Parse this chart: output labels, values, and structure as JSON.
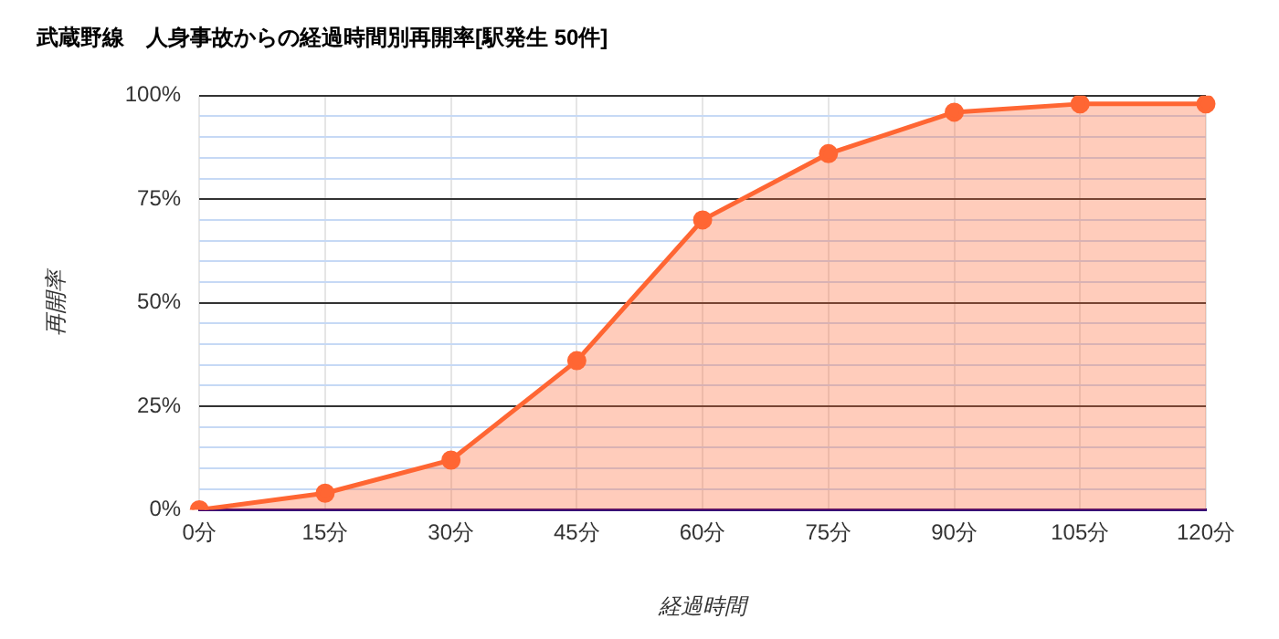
{
  "chart_data": {
    "type": "area",
    "title": "武蔵野線　人身事故からの経過時間別再開率[駅発生 50件]",
    "xlabel": "経過時間",
    "ylabel": "再開率",
    "categories": [
      "0分",
      "15分",
      "30分",
      "45分",
      "60分",
      "75分",
      "90分",
      "105分",
      "120分"
    ],
    "series": [
      {
        "color": "#ff6633",
        "values": [
          0,
          4,
          12,
          36,
          70,
          86,
          96,
          98,
          98
        ]
      }
    ],
    "ylim": [
      0,
      100
    ],
    "yticks": [
      {
        "value": 0,
        "label": "0%"
      },
      {
        "value": 5,
        "label": null
      },
      {
        "value": 10,
        "label": null
      },
      {
        "value": 15,
        "label": null
      },
      {
        "value": 20,
        "label": null
      },
      {
        "value": 25,
        "label": "25%"
      },
      {
        "value": 30,
        "label": null
      },
      {
        "value": 35,
        "label": null
      },
      {
        "value": 40,
        "label": null
      },
      {
        "value": 45,
        "label": null
      },
      {
        "value": 50,
        "label": "50%"
      },
      {
        "value": 55,
        "label": null
      },
      {
        "value": 60,
        "label": null
      },
      {
        "value": 65,
        "label": null
      },
      {
        "value": 70,
        "label": null
      },
      {
        "value": 75,
        "label": "75%"
      },
      {
        "value": 80,
        "label": null
      },
      {
        "value": 85,
        "label": null
      },
      {
        "value": 90,
        "label": null
      },
      {
        "value": 95,
        "label": null
      },
      {
        "value": 100,
        "label": "100%"
      }
    ],
    "grid": true,
    "marker": "circle",
    "legend": false
  }
}
